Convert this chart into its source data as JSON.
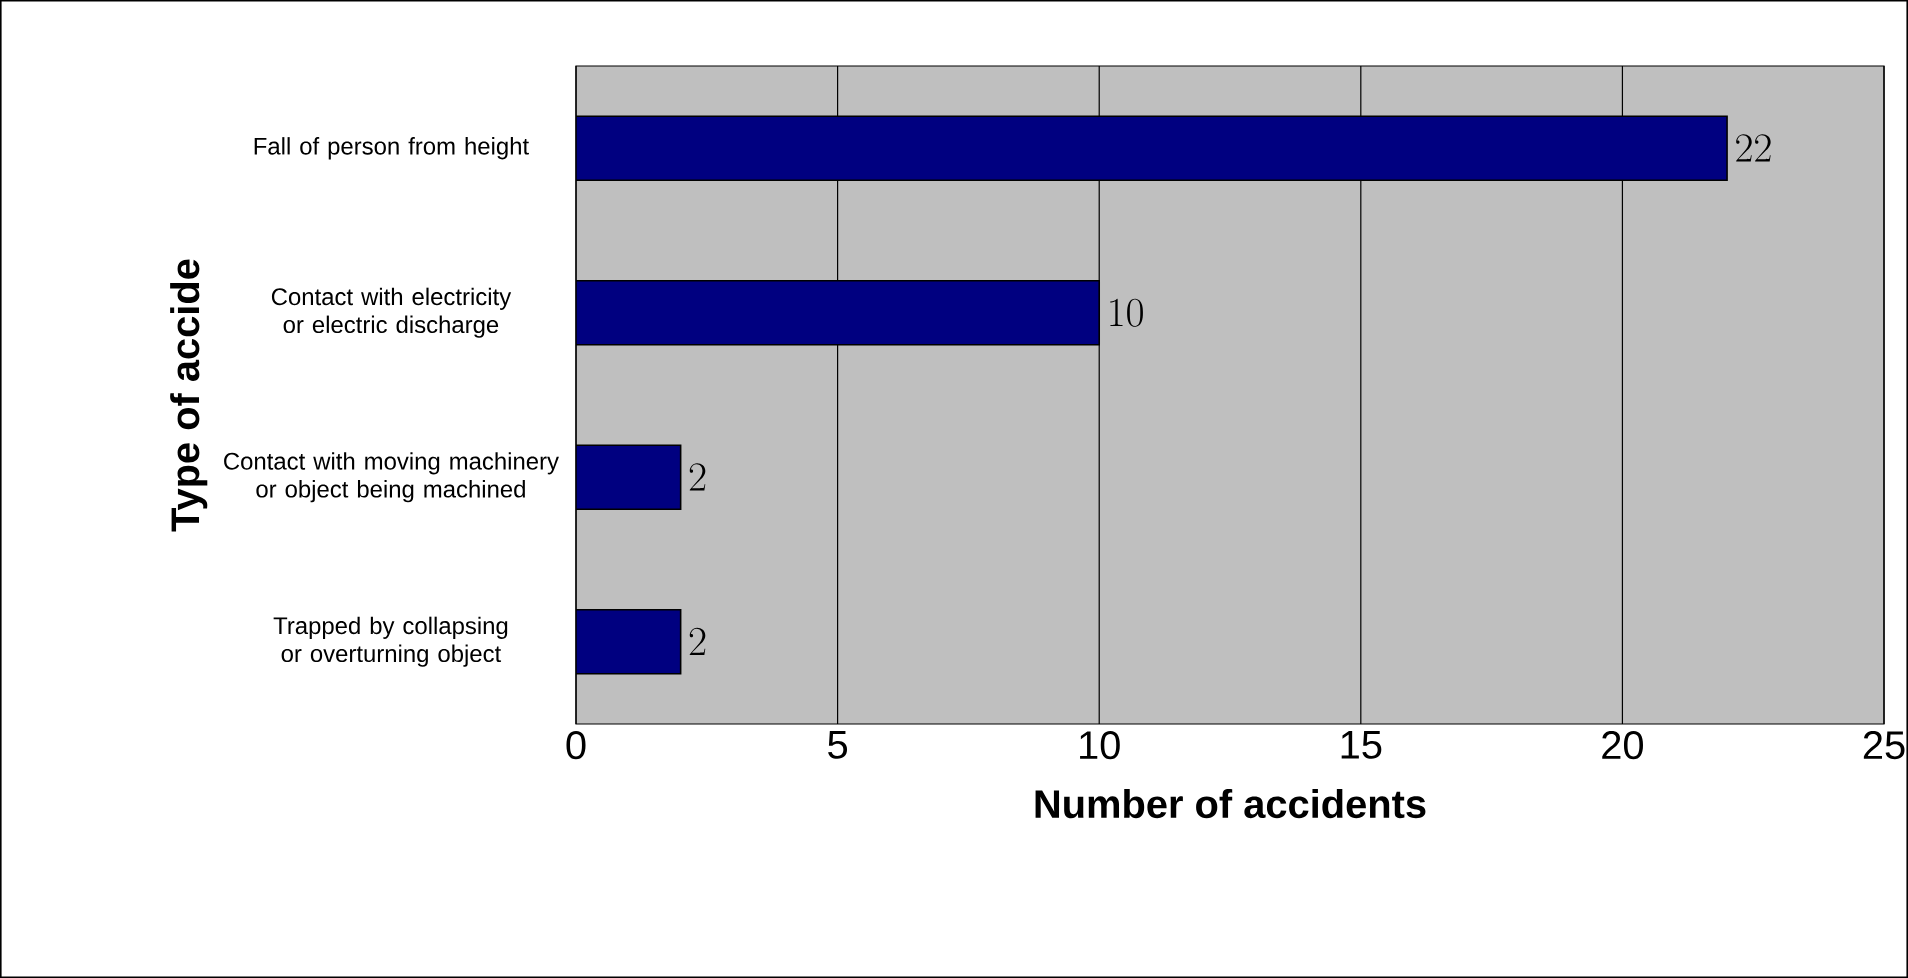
{
  "chart_data": {
    "type": "bar",
    "orientation": "horizontal",
    "xlabel": "Number of accidents",
    "ylabel": "Type of accide",
    "categories": [
      "Fall of person from height",
      "Contact with electricity or electric discharge",
      "Contact with moving machinery or object being machined",
      "Trapped by collapsing or overturning object"
    ],
    "values": [
      22,
      10,
      2,
      2
    ],
    "color": "#000080",
    "xlim": [
      0,
      25
    ],
    "xticks": [
      0,
      5,
      10,
      15,
      20,
      25
    ],
    "grid": "x",
    "data_labels": true
  }
}
